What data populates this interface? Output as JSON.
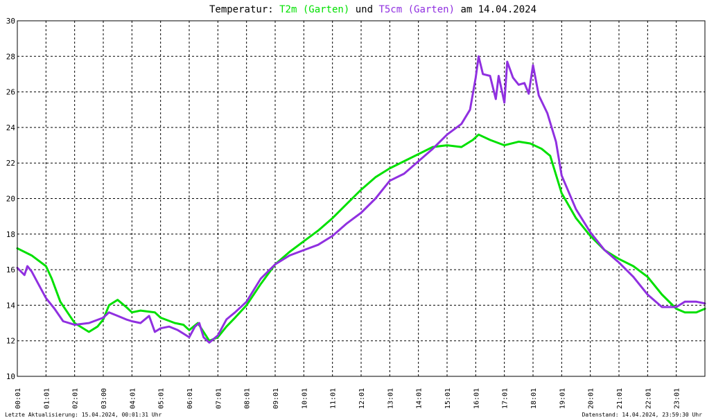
{
  "title": {
    "prefix": "Temperatur: ",
    "series1": "T2m (Garten)",
    "middle": " und ",
    "series2": "T5cm (Garten)",
    "suffix": " am 14.04.2024"
  },
  "footer": {
    "left": "Letzte Aktualisierung: 15.04.2024, 00:01:31 Uhr",
    "right": "Datenstand: 14.04.2024, 23:59:30 Uhr"
  },
  "colors": {
    "t2m": "#00e000",
    "t5cm": "#9030e0",
    "background": "#ffffff",
    "grid": "#000000"
  },
  "chart_data": {
    "type": "line",
    "title": "Temperatur: T2m (Garten) und T5cm (Garten) am 14.04.2024",
    "xlabel": "",
    "ylabel": "",
    "ylim": [
      10,
      30
    ],
    "xlim": [
      0,
      24
    ],
    "grid": true,
    "legend": "in title",
    "yticks": [
      "10",
      "12",
      "14",
      "16",
      "18",
      "20",
      "22",
      "24",
      "26",
      "28",
      "30"
    ],
    "xticks": [
      "00:01",
      "01:01",
      "02:01",
      "03:00",
      "04:01",
      "05:01",
      "06:01",
      "07:01",
      "08:01",
      "09:01",
      "10:01",
      "11:01",
      "12:01",
      "13:01",
      "14:01",
      "15:01",
      "16:01",
      "17:01",
      "18:01",
      "19:01",
      "20:01",
      "21:01",
      "22:01",
      "23:01"
    ],
    "series": [
      {
        "name": "T2m (Garten)",
        "x": [
          0,
          0.5,
          1,
          1.2,
          1.5,
          2,
          2.5,
          2.8,
          3,
          3.2,
          3.5,
          3.8,
          4,
          4.3,
          4.8,
          5,
          5.5,
          5.8,
          6,
          6.15,
          6.3,
          6.5,
          6.7,
          7,
          7.3,
          7.6,
          8,
          8.5,
          9,
          9.5,
          10,
          10.5,
          11,
          11.5,
          12,
          12.5,
          13,
          13.5,
          14,
          14.5,
          15,
          15.5,
          15.9,
          16.1,
          16.5,
          17,
          17.5,
          17.9,
          18.3,
          18.6,
          19,
          19.5,
          20,
          20.5,
          21,
          21.5,
          22,
          22.5,
          23,
          23.3,
          23.7,
          24
        ],
        "y": [
          17.2,
          16.8,
          16.2,
          15.5,
          14.2,
          13.0,
          12.5,
          12.8,
          13.2,
          14.0,
          14.3,
          13.9,
          13.6,
          13.7,
          13.6,
          13.3,
          13.0,
          12.9,
          12.6,
          12.8,
          13.0,
          12.5,
          12.0,
          12.2,
          12.8,
          13.3,
          14.0,
          15.2,
          16.3,
          17.0,
          17.6,
          18.2,
          18.9,
          19.7,
          20.5,
          21.2,
          21.7,
          22.1,
          22.5,
          22.9,
          23.0,
          22.9,
          23.3,
          23.6,
          23.3,
          23.0,
          23.2,
          23.1,
          22.8,
          22.4,
          20.3,
          18.9,
          17.9,
          17.1,
          16.6,
          16.2,
          15.6,
          14.6,
          13.8,
          13.6,
          13.6,
          13.8
        ]
      },
      {
        "name": "T5cm (Garten)",
        "x": [
          0,
          0.25,
          0.35,
          0.5,
          0.7,
          1,
          1.3,
          1.6,
          2,
          2.5,
          3,
          3.2,
          3.5,
          3.8,
          4,
          4.3,
          4.6,
          4.8,
          5,
          5.3,
          5.6,
          5.8,
          6,
          6.2,
          6.35,
          6.5,
          6.7,
          7,
          7.3,
          7.6,
          8,
          8.5,
          9,
          9.5,
          10,
          10.5,
          11,
          11.5,
          12,
          12.5,
          13,
          13.5,
          14,
          14.5,
          15,
          15.5,
          15.8,
          16,
          16.1,
          16.25,
          16.5,
          16.7,
          16.8,
          17,
          17.1,
          17.3,
          17.5,
          17.7,
          17.85,
          18.0,
          18.2,
          18.5,
          18.8,
          19,
          19.5,
          20,
          20.5,
          21,
          21.5,
          22,
          22.5,
          23,
          23.3,
          23.7,
          24
        ],
        "y": [
          16.1,
          15.7,
          16.2,
          15.9,
          15.3,
          14.4,
          13.8,
          13.1,
          12.9,
          13.0,
          13.3,
          13.6,
          13.4,
          13.2,
          13.1,
          13.0,
          13.4,
          12.5,
          12.7,
          12.8,
          12.6,
          12.4,
          12.2,
          12.8,
          13.0,
          12.2,
          11.9,
          12.3,
          13.2,
          13.6,
          14.2,
          15.5,
          16.3,
          16.8,
          17.1,
          17.4,
          17.9,
          18.6,
          19.2,
          20.0,
          21.0,
          21.4,
          22.1,
          22.8,
          23.6,
          24.2,
          25.0,
          26.8,
          28.0,
          27.0,
          26.9,
          25.6,
          26.9,
          25.4,
          27.7,
          26.8,
          26.4,
          26.5,
          25.9,
          27.5,
          25.8,
          24.8,
          23.2,
          21.3,
          19.4,
          18.1,
          17.1,
          16.4,
          15.6,
          14.6,
          13.9,
          13.9,
          14.2,
          14.2,
          14.1
        ]
      }
    ]
  }
}
